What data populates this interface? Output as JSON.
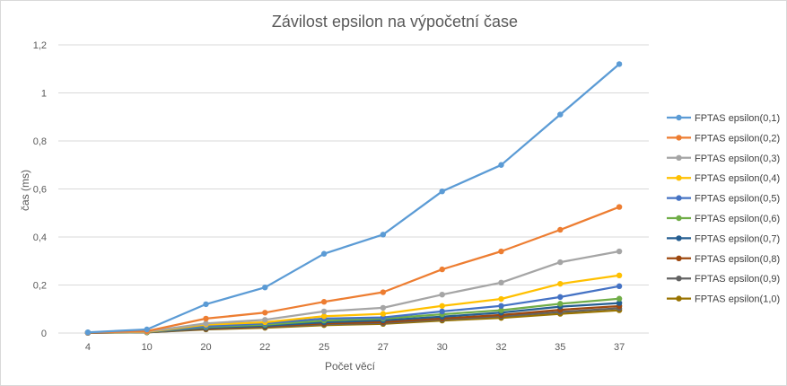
{
  "chart_data": {
    "type": "line",
    "title": "Závilost epsilon na výpočetní čase",
    "xlabel": "Počet věcí",
    "ylabel": "čas (ms)",
    "categories": [
      "4",
      "10",
      "20",
      "22",
      "25",
      "27",
      "30",
      "32",
      "35",
      "37"
    ],
    "ylim": [
      0,
      1.2
    ],
    "yticks": [
      0,
      0.2,
      0.4,
      0.6,
      0.8,
      1,
      1.2
    ],
    "ytick_labels": [
      "0",
      "0,2",
      "0,4",
      "0,6",
      "0,8",
      "1",
      "1,2"
    ],
    "grid": true,
    "legend_position": "right",
    "series": [
      {
        "name": "FPTAS epsilon(0,1)",
        "color": "#5b9bd5",
        "values": [
          0.003,
          0.015,
          0.12,
          0.19,
          0.33,
          0.41,
          0.59,
          0.7,
          0.91,
          1.12
        ]
      },
      {
        "name": "FPTAS epsilon(0,2)",
        "color": "#ed7d31",
        "values": [
          0.002,
          0.008,
          0.06,
          0.085,
          0.13,
          0.17,
          0.265,
          0.34,
          0.43,
          0.525
        ]
      },
      {
        "name": "FPTAS epsilon(0,3)",
        "color": "#a5a5a5",
        "values": [
          0.002,
          0.006,
          0.04,
          0.055,
          0.09,
          0.105,
          0.16,
          0.21,
          0.295,
          0.34
        ]
      },
      {
        "name": "FPTAS epsilon(0,4)",
        "color": "#ffc000",
        "values": [
          0.002,
          0.005,
          0.035,
          0.045,
          0.07,
          0.08,
          0.113,
          0.142,
          0.205,
          0.24
        ]
      },
      {
        "name": "FPTAS epsilon(0,5)",
        "color": "#4472c4",
        "values": [
          0.002,
          0.005,
          0.028,
          0.04,
          0.06,
          0.065,
          0.09,
          0.113,
          0.15,
          0.195
        ]
      },
      {
        "name": "FPTAS epsilon(0,6)",
        "color": "#70ad47",
        "values": [
          0.002,
          0.004,
          0.025,
          0.035,
          0.052,
          0.06,
          0.078,
          0.095,
          0.122,
          0.143
        ]
      },
      {
        "name": "FPTAS epsilon(0,7)",
        "color": "#255e91",
        "values": [
          0.001,
          0.004,
          0.022,
          0.03,
          0.045,
          0.053,
          0.068,
          0.085,
          0.11,
          0.125
        ]
      },
      {
        "name": "FPTAS epsilon(0,8)",
        "color": "#9e480e",
        "values": [
          0.001,
          0.004,
          0.019,
          0.027,
          0.04,
          0.046,
          0.061,
          0.075,
          0.097,
          0.112
        ]
      },
      {
        "name": "FPTAS epsilon(0,9)",
        "color": "#636363",
        "values": [
          0.001,
          0.003,
          0.017,
          0.025,
          0.037,
          0.042,
          0.057,
          0.07,
          0.088,
          0.103
        ]
      },
      {
        "name": "FPTAS epsilon(1,0)",
        "color": "#997300",
        "values": [
          0.001,
          0.003,
          0.015,
          0.022,
          0.033,
          0.038,
          0.052,
          0.063,
          0.08,
          0.095
        ]
      }
    ]
  }
}
